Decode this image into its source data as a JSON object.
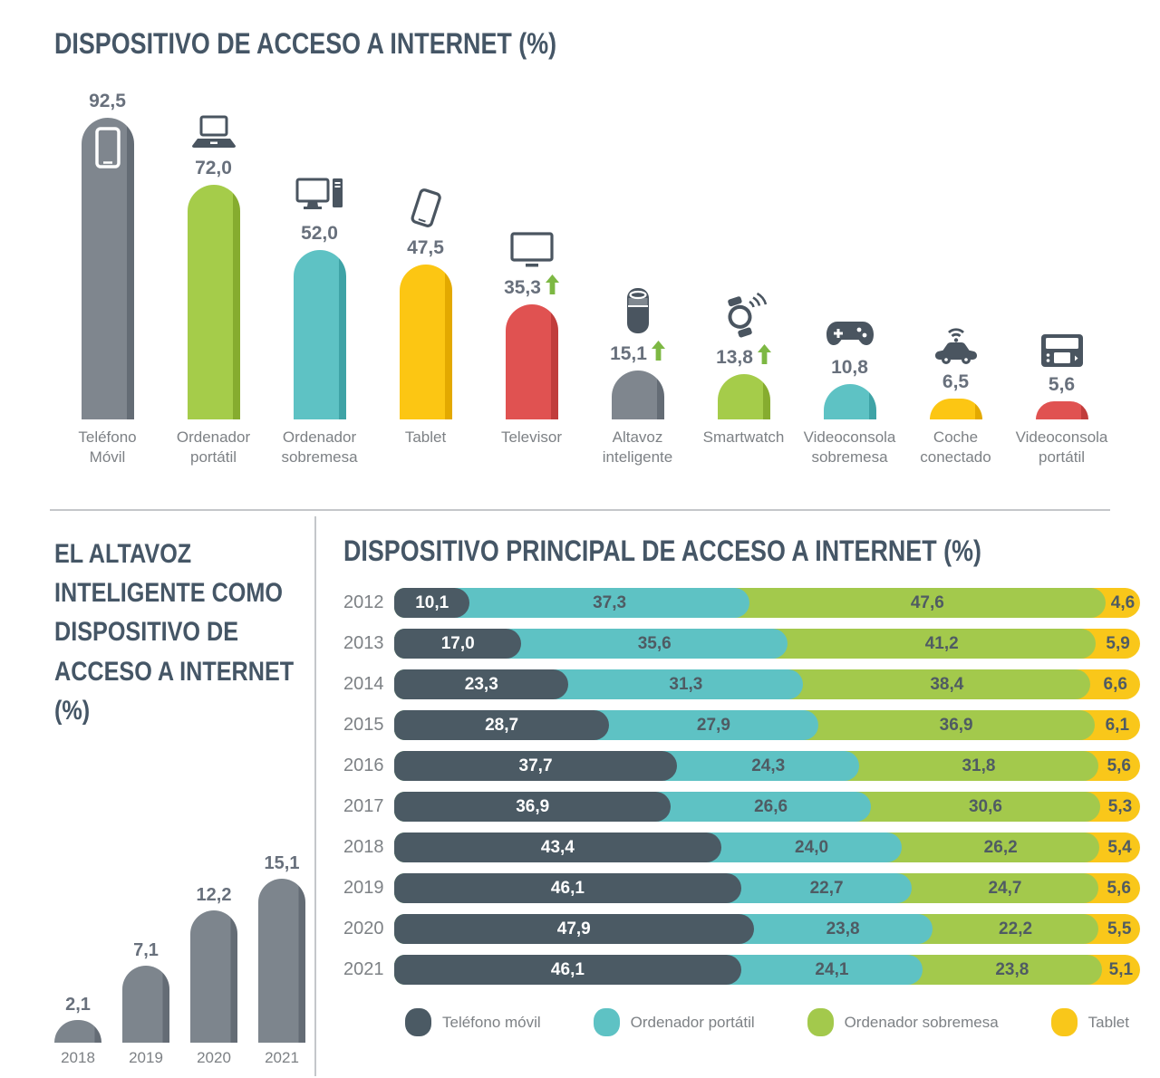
{
  "colors": {
    "title": "#455666",
    "icon": "#4A5560",
    "arrow_up": "#7DB843",
    "value_text": "#68707C",
    "category_text": "#7D8185",
    "divider": "#C4C7CA",
    "segment_label_light": "#FFFFFF",
    "segment_label_dark": "#4F5B63"
  },
  "chart_data": [
    {
      "type": "bar",
      "title": "DISPOSITIVO DE ACCESO A INTERNET (%)",
      "ylim": [
        0,
        100
      ],
      "grid": false,
      "items": [
        {
          "category": "Teléfono Móvil",
          "value": 92.5,
          "label": "92,5",
          "trend_up": false,
          "color": "#7F868E",
          "edge": "#646C75",
          "icon": "smartphone-icon",
          "icon_inside": true
        },
        {
          "category": "Ordenador portátil",
          "value": 72.0,
          "label": "72,0",
          "trend_up": false,
          "color": "#A5CC4A",
          "edge": "#86AC2F",
          "icon": "laptop-icon",
          "icon_inside": false
        },
        {
          "category": "Ordenador sobremesa",
          "value": 52.0,
          "label": "52,0",
          "trend_up": false,
          "color": "#5EC2C4",
          "edge": "#3FA3A6",
          "icon": "desktop-icon",
          "icon_inside": false
        },
        {
          "category": "Tablet",
          "value": 47.5,
          "label": "47,5",
          "trend_up": false,
          "color": "#FCC613",
          "edge": "#E3A900",
          "icon": "tablet-icon",
          "icon_inside": false
        },
        {
          "category": "Televisor",
          "value": 35.3,
          "label": "35,3",
          "trend_up": true,
          "color": "#E05251",
          "edge": "#C13D3C",
          "icon": "tv-icon",
          "icon_inside": false
        },
        {
          "category": "Altavoz inteligente",
          "value": 15.1,
          "label": "15,1",
          "trend_up": true,
          "color": "#7F868E",
          "edge": "#646C75",
          "icon": "smart-speaker-icon",
          "icon_inside": false
        },
        {
          "category": "Smartwatch",
          "value": 13.8,
          "label": "13,8",
          "trend_up": true,
          "color": "#A5CC4A",
          "edge": "#86AC2F",
          "icon": "smartwatch-icon",
          "icon_inside": false
        },
        {
          "category": "Videoconsola sobremesa",
          "value": 10.8,
          "label": "10,8",
          "trend_up": false,
          "color": "#5EC2C4",
          "edge": "#3FA3A6",
          "icon": "gamepad-icon",
          "icon_inside": false
        },
        {
          "category": "Coche conectado",
          "value": 6.5,
          "label": "6,5",
          "trend_up": false,
          "color": "#FCC613",
          "edge": "#E3A900",
          "icon": "connected-car-icon",
          "icon_inside": false
        },
        {
          "category": "Videoconsola portátil",
          "value": 5.6,
          "label": "5,6",
          "trend_up": false,
          "color": "#E05251",
          "edge": "#C13D3C",
          "icon": "handheld-console-icon",
          "icon_inside": false
        }
      ]
    },
    {
      "type": "bar",
      "title": "EL ALTAVOZ INTELIGENTE COMO DISPOSITIVO DE ACCESO A INTERNET (%)",
      "grid": false,
      "bar_color": "#7D858D",
      "categories": [
        "2018",
        "2019",
        "2020",
        "2021"
      ],
      "values": [
        2.1,
        7.1,
        12.2,
        15.1
      ],
      "labels": [
        "2,1",
        "7,1",
        "12,2",
        "15,1"
      ]
    },
    {
      "type": "stacked-bar-horizontal",
      "title": "DISPOSITIVO PRINCIPAL DE ACCESO A INTERNET (%)",
      "categories": [
        "2012",
        "2013",
        "2014",
        "2015",
        "2016",
        "2017",
        "2018",
        "2019",
        "2020",
        "2021"
      ],
      "legend_position": "bottom",
      "series": [
        {
          "name": "Teléfono móvil",
          "color": "#4B5A64",
          "label_color": "#FFFFFF",
          "values": [
            10.1,
            17.0,
            23.3,
            28.7,
            37.7,
            36.9,
            43.4,
            46.1,
            47.9,
            46.1
          ],
          "labels": [
            "10,1",
            "17,0",
            "23,3",
            "28,7",
            "37,7",
            "36,9",
            "43,4",
            "46,1",
            "47,9",
            "46,1"
          ]
        },
        {
          "name": "Ordenador portátil",
          "color": "#5EC2C4",
          "label_color": "#4F5B63",
          "values": [
            37.3,
            35.6,
            31.3,
            27.9,
            24.3,
            26.6,
            24.0,
            22.7,
            23.8,
            24.1
          ],
          "labels": [
            "37,3",
            "35,6",
            "31,3",
            "27,9",
            "24,3",
            "26,6",
            "24,0",
            "22,7",
            "23,8",
            "24,1"
          ]
        },
        {
          "name": "Ordenador sobremesa",
          "color": "#A3C94C",
          "label_color": "#4F5B63",
          "values": [
            47.6,
            41.2,
            38.4,
            36.9,
            31.8,
            30.6,
            26.2,
            24.7,
            22.2,
            23.8
          ],
          "labels": [
            "47,6",
            "41,2",
            "38,4",
            "36,9",
            "31,8",
            "30,6",
            "26,2",
            "24,7",
            "22,2",
            "23,8"
          ]
        },
        {
          "name": "Tablet",
          "color": "#F9C71A",
          "label_color": "#4F5B63",
          "values": [
            4.6,
            5.9,
            6.6,
            6.1,
            5.6,
            5.3,
            5.4,
            5.6,
            5.5,
            5.1
          ],
          "labels": [
            "4,6",
            "5,9",
            "6,6",
            "6,1",
            "5,6",
            "5,3",
            "5,4",
            "5,6",
            "5,5",
            "5,1"
          ]
        }
      ]
    }
  ]
}
